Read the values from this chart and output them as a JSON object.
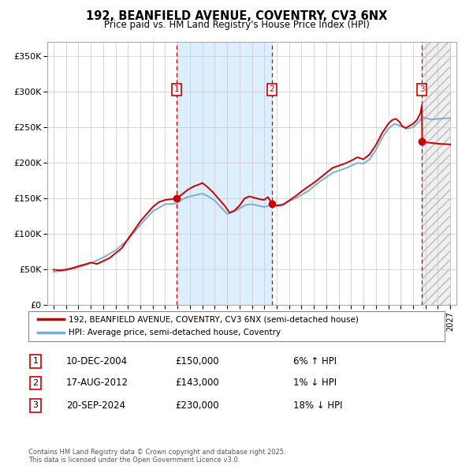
{
  "title": "192, BEANFIELD AVENUE, COVENTRY, CV3 6NX",
  "subtitle": "Price paid vs. HM Land Registry's House Price Index (HPI)",
  "red_label": "192, BEANFIELD AVENUE, COVENTRY, CV3 6NX (semi-detached house)",
  "blue_label": "HPI: Average price, semi-detached house, Coventry",
  "sale_points": [
    {
      "num": 1,
      "date": "10-DEC-2004",
      "price": 150000,
      "pct": "6% ↑ HPI",
      "x_year": 2004.94
    },
    {
      "num": 2,
      "date": "17-AUG-2012",
      "price": 143000,
      "pct": "1% ↓ HPI",
      "x_year": 2012.62
    },
    {
      "num": 3,
      "date": "20-SEP-2024",
      "price": 230000,
      "pct": "18% ↓ HPI",
      "x_year": 2024.72
    }
  ],
  "footnote": "Contains HM Land Registry data © Crown copyright and database right 2025.\nThis data is licensed under the Open Government Licence v3.0.",
  "ylim": [
    0,
    370000
  ],
  "xlim": [
    1994.5,
    2027.5
  ],
  "yticks": [
    0,
    50000,
    100000,
    150000,
    200000,
    250000,
    300000,
    350000
  ],
  "ytick_labels": [
    "£0",
    "£50K",
    "£100K",
    "£150K",
    "£200K",
    "£250K",
    "£300K",
    "£350K"
  ],
  "xticks": [
    1995,
    1996,
    1997,
    1998,
    1999,
    2000,
    2001,
    2002,
    2003,
    2004,
    2005,
    2006,
    2007,
    2008,
    2009,
    2010,
    2011,
    2012,
    2013,
    2014,
    2015,
    2016,
    2017,
    2018,
    2019,
    2020,
    2021,
    2022,
    2023,
    2024,
    2025,
    2026,
    2027
  ],
  "background_color": "#ffffff",
  "grid_color": "#c8c8c8",
  "red_color": "#cc0000",
  "blue_color": "#7aaed6",
  "shade_color": "#ddeeff",
  "hatch_color": "#bbbbbb",
  "table_data": [
    [
      "1",
      "10-DEC-2004",
      "£150,000",
      "6% ↑ HPI"
    ],
    [
      "2",
      "17-AUG-2012",
      "£143,000",
      "1% ↓ HPI"
    ],
    [
      "3",
      "20-SEP-2024",
      "£230,000",
      "18% ↓ HPI"
    ]
  ]
}
